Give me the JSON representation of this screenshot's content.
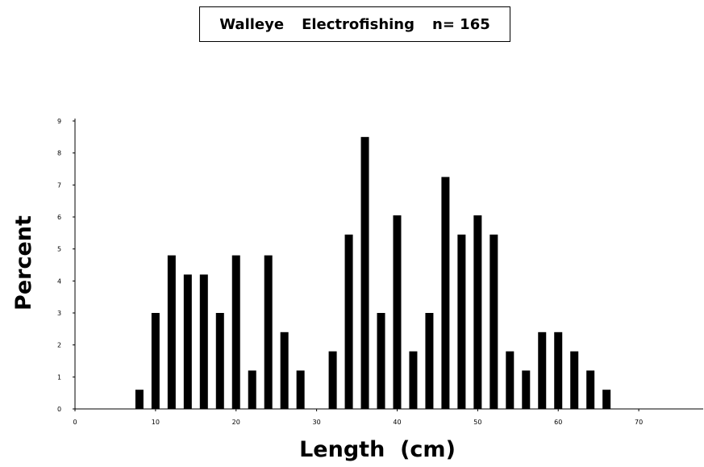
{
  "title": {
    "species": "Walleye",
    "method": "Electrofishing",
    "n_label": "n= 165"
  },
  "chart_data": {
    "type": "bar",
    "xlabel": "Length  (cm)",
    "ylabel": "Percent",
    "xlim": [
      0,
      78
    ],
    "ylim": [
      0,
      9
    ],
    "x_ticks": [
      0,
      10,
      20,
      30,
      40,
      50,
      60,
      70
    ],
    "y_ticks": [
      0,
      1,
      2,
      3,
      4,
      5,
      6,
      7,
      8,
      9
    ],
    "bar_color": "#000000",
    "grid": false,
    "x": [
      8,
      10,
      12,
      14,
      16,
      18,
      20,
      22,
      24,
      26,
      28,
      32,
      34,
      36,
      38,
      40,
      42,
      44,
      46,
      48,
      50,
      52,
      54,
      56,
      58,
      60,
      62,
      64,
      66
    ],
    "values": [
      0.6,
      3.0,
      4.8,
      4.2,
      4.2,
      3.0,
      4.8,
      1.2,
      4.8,
      2.4,
      1.2,
      1.8,
      5.45,
      8.5,
      3.0,
      6.05,
      1.8,
      3.0,
      7.25,
      5.45,
      6.05,
      5.45,
      1.8,
      1.2,
      2.4,
      2.4,
      1.8,
      1.2,
      0.6
    ]
  }
}
